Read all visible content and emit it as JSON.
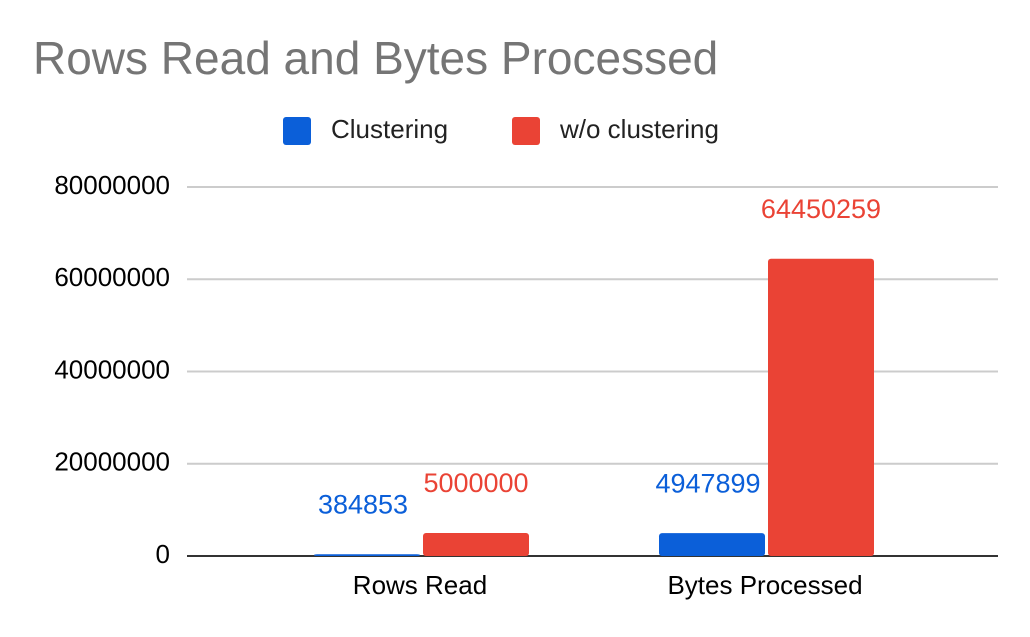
{
  "chart_data": {
    "type": "bar",
    "title": "Rows Read and Bytes Processed",
    "categories": [
      "Rows Read",
      "Bytes Processed"
    ],
    "series": [
      {
        "name": "Clustering",
        "color": "#0b5fd9",
        "values": [
          384853,
          4947899
        ]
      },
      {
        "name": "w/o clustering",
        "color": "#ea4335",
        "values": [
          5000000,
          64450259
        ]
      }
    ],
    "ylim": [
      0,
      80000000
    ],
    "yticks": [
      0,
      20000000,
      40000000,
      60000000,
      80000000
    ],
    "grid": true,
    "legend": "top"
  }
}
